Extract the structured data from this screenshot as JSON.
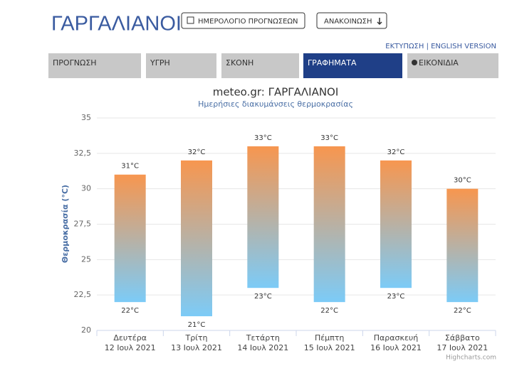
{
  "header": {
    "title": "ΓΑΡΓΑΛΙΑΝΟΙ",
    "buttons": [
      "ΗΜΕΡΟΛΟΓΙΟ ΠΡΟΓΝΩΣΕΩΝ",
      "ΑΝΑΚΟΙΝΩΣΗ"
    ],
    "links": "ΕΚΤΥΠΩΣΗ | ENGLISH VERSION"
  },
  "tabs": {
    "items": [
      "ΠΡΟΓΝΩΣΗ",
      "ΥΓΡΗ",
      "ΣΚΟΝΗ",
      "ΓΡΑΦΗΜΑΤΑ",
      "ΕΙΚΟΝΙΔΙΑ"
    ],
    "active": 3
  },
  "chart_data": {
    "type": "columnrange",
    "title": "meteo.gr: ΓΑΡΓΑΛΙΑΝΟΙ",
    "subtitle": "Ημερήσιες διακυμάνσεις θερμοκρασίας",
    "y_label": "Θερμοκρασία (°C)",
    "categories": [
      [
        "Δευτέρα",
        "12 Ιουλ 2021"
      ],
      [
        "Τρίτη",
        "13 Ιουλ 2021"
      ],
      [
        "Τετάρτη",
        "14 Ιουλ 2021"
      ],
      [
        "Πέμπτη",
        "15 Ιουλ 2021"
      ],
      [
        "Παρασκευή",
        "16 Ιουλ 2021"
      ],
      [
        "Σάββατο",
        "17 Ιουλ 2021"
      ]
    ],
    "low": [
      22,
      21,
      23,
      22,
      23,
      22
    ],
    "high": [
      31,
      32,
      33,
      33,
      32,
      30
    ],
    "low_labels": [
      "22°C",
      "21°C",
      "23°C",
      "22°C",
      "23°C",
      "22°C"
    ],
    "high_labels": [
      "31°C",
      "32°C",
      "33°C",
      "33°C",
      "32°C",
      "30°C"
    ],
    "gradient": [
      "#f7964f",
      "#7ccbf7"
    ],
    "ylim": [
      20,
      35
    ],
    "yticks": [
      20,
      {
        "value": 22.5,
        "label": "22,5"
      },
      25,
      {
        "value": 27.5,
        "label": "27,5"
      },
      30,
      {
        "value": 32.5,
        "label": "32,5"
      },
      35
    ],
    "grid": true,
    "credits": "Highcharts.com"
  }
}
